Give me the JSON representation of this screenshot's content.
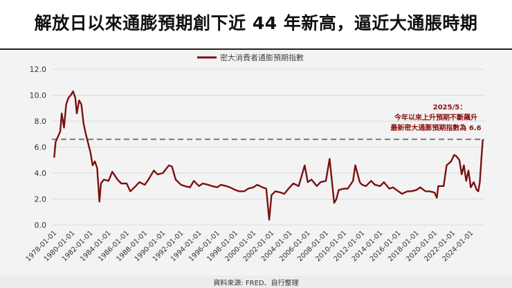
{
  "title": "解放日以來通膨預期創下近 44 年新高，逼近大通脹時期",
  "source": "資料來源: FRED、自行整理",
  "annotation": {
    "line1": "2025/5：",
    "line2": "今年以來上升預期不斷飆升",
    "line3": "最新密大通膨預期指數為 6.6"
  },
  "colors": {
    "series": "#7a1010",
    "annotation": "#8b1010",
    "reference": "#777777",
    "grid": "#d8d8d8"
  },
  "chart_data": {
    "type": "line",
    "title": "解放日以來通膨預期創下近 44 年新高，逼近大通脹時期",
    "legend": {
      "position": "top-center"
    },
    "series": [
      {
        "name": "密大消費者通膨預期指數",
        "points": [
          [
            "1978-01-01",
            5.2
          ],
          [
            "1978-03-01",
            6.4
          ],
          [
            "1978-06-01",
            6.8
          ],
          [
            "1978-09-01",
            7.2
          ],
          [
            "1978-11-01",
            8.6
          ],
          [
            "1979-02-01",
            7.5
          ],
          [
            "1979-05-01",
            9.3
          ],
          [
            "1979-08-01",
            9.8
          ],
          [
            "1979-11-01",
            10.0
          ],
          [
            "1980-02-01",
            10.3
          ],
          [
            "1980-05-01",
            9.8
          ],
          [
            "1980-07-01",
            8.6
          ],
          [
            "1980-10-01",
            9.6
          ],
          [
            "1981-01-01",
            9.3
          ],
          [
            "1981-04-01",
            7.8
          ],
          [
            "1981-07-01",
            7.0
          ],
          [
            "1981-10-01",
            6.3
          ],
          [
            "1982-01-01",
            5.6
          ],
          [
            "1982-04-01",
            4.6
          ],
          [
            "1982-07-01",
            4.9
          ],
          [
            "1982-10-01",
            4.4
          ],
          [
            "1983-01-01",
            1.8
          ],
          [
            "1983-03-01",
            3.2
          ],
          [
            "1983-07-01",
            3.5
          ],
          [
            "1984-01-01",
            3.4
          ],
          [
            "1984-06-01",
            4.1
          ],
          [
            "1985-01-01",
            3.5
          ],
          [
            "1985-06-01",
            3.2
          ],
          [
            "1986-01-01",
            3.2
          ],
          [
            "1986-06-01",
            2.6
          ],
          [
            "1987-01-01",
            3.0
          ],
          [
            "1987-06-01",
            3.3
          ],
          [
            "1988-01-01",
            3.1
          ],
          [
            "1988-06-01",
            3.5
          ],
          [
            "1989-01-01",
            4.2
          ],
          [
            "1989-06-01",
            3.9
          ],
          [
            "1990-01-01",
            4.0
          ],
          [
            "1990-09-01",
            4.6
          ],
          [
            "1991-01-01",
            4.5
          ],
          [
            "1991-06-01",
            3.5
          ],
          [
            "1992-01-01",
            3.1
          ],
          [
            "1992-06-01",
            3.0
          ],
          [
            "1993-01-01",
            2.9
          ],
          [
            "1993-06-01",
            3.4
          ],
          [
            "1994-01-01",
            3.0
          ],
          [
            "1994-06-01",
            3.2
          ],
          [
            "1995-01-01",
            3.1
          ],
          [
            "1995-06-01",
            3.0
          ],
          [
            "1996-01-01",
            2.9
          ],
          [
            "1996-06-01",
            3.1
          ],
          [
            "1997-01-01",
            3.0
          ],
          [
            "1997-06-01",
            2.9
          ],
          [
            "1998-01-01",
            2.7
          ],
          [
            "1998-06-01",
            2.6
          ],
          [
            "1999-01-01",
            2.6
          ],
          [
            "1999-06-01",
            2.8
          ],
          [
            "2000-01-01",
            2.9
          ],
          [
            "2000-06-01",
            3.1
          ],
          [
            "2001-01-01",
            2.9
          ],
          [
            "2001-06-01",
            2.8
          ],
          [
            "2001-10-01",
            0.4
          ],
          [
            "2002-01-01",
            2.3
          ],
          [
            "2002-06-01",
            2.6
          ],
          [
            "2003-01-01",
            2.5
          ],
          [
            "2003-06-01",
            2.4
          ],
          [
            "2004-01-01",
            2.9
          ],
          [
            "2004-06-01",
            3.2
          ],
          [
            "2005-01-01",
            3.0
          ],
          [
            "2005-09-01",
            4.6
          ],
          [
            "2006-01-01",
            3.3
          ],
          [
            "2006-06-01",
            3.5
          ],
          [
            "2007-01-01",
            3.0
          ],
          [
            "2007-06-01",
            3.3
          ],
          [
            "2008-01-01",
            3.4
          ],
          [
            "2008-06-01",
            5.1
          ],
          [
            "2008-12-01",
            1.7
          ],
          [
            "2009-03-01",
            2.0
          ],
          [
            "2009-06-01",
            2.7
          ],
          [
            "2010-01-01",
            2.8
          ],
          [
            "2010-06-01",
            2.8
          ],
          [
            "2011-01-01",
            3.4
          ],
          [
            "2011-04-01",
            4.6
          ],
          [
            "2011-10-01",
            3.3
          ],
          [
            "2012-01-01",
            3.1
          ],
          [
            "2012-06-01",
            3.0
          ],
          [
            "2013-01-01",
            3.4
          ],
          [
            "2013-06-01",
            3.1
          ],
          [
            "2014-01-01",
            3.0
          ],
          [
            "2014-06-01",
            3.3
          ],
          [
            "2015-01-01",
            2.8
          ],
          [
            "2015-06-01",
            2.9
          ],
          [
            "2016-01-01",
            2.6
          ],
          [
            "2016-06-01",
            2.4
          ],
          [
            "2017-01-01",
            2.6
          ],
          [
            "2017-06-01",
            2.6
          ],
          [
            "2018-01-01",
            2.7
          ],
          [
            "2018-06-01",
            2.9
          ],
          [
            "2019-01-01",
            2.6
          ],
          [
            "2019-06-01",
            2.6
          ],
          [
            "2020-01-01",
            2.5
          ],
          [
            "2020-04-01",
            2.1
          ],
          [
            "2020-06-01",
            3.0
          ],
          [
            "2021-01-01",
            3.0
          ],
          [
            "2021-05-01",
            4.6
          ],
          [
            "2021-11-01",
            4.9
          ],
          [
            "2022-03-01",
            5.4
          ],
          [
            "2022-06-01",
            5.3
          ],
          [
            "2022-10-01",
            5.0
          ],
          [
            "2023-01-01",
            3.9
          ],
          [
            "2023-04-01",
            4.6
          ],
          [
            "2023-07-01",
            3.4
          ],
          [
            "2023-10-01",
            4.2
          ],
          [
            "2024-01-01",
            2.9
          ],
          [
            "2024-05-01",
            3.3
          ],
          [
            "2024-09-01",
            2.7
          ],
          [
            "2024-11-01",
            2.6
          ],
          [
            "2025-01-01",
            3.3
          ],
          [
            "2025-03-01",
            5.0
          ],
          [
            "2025-05-01",
            6.6
          ]
        ]
      }
    ],
    "reference_line": {
      "y": 6.6
    },
    "ylim": [
      0,
      12
    ],
    "yticks": [
      "0.0",
      "2.0",
      "4.0",
      "6.0",
      "8.0",
      "10.0",
      "12.0"
    ],
    "xlim": [
      "1977-10-01",
      "2025-07-01"
    ],
    "xticks": [
      "1978-01-01",
      "1980-01-01",
      "1982-01-01",
      "1984-01-01",
      "1986-01-01",
      "1988-01-01",
      "1990-01-01",
      "1992-01-01",
      "1994-01-01",
      "1996-01-01",
      "1998-01-01",
      "2000-01-01",
      "2002-01-01",
      "2004-01-01",
      "2006-01-01",
      "2008-01-01",
      "2010-01-01",
      "2012-01-01",
      "2014-01-01",
      "2016-01-01",
      "2018-01-01",
      "2020-01-01",
      "2022-01-01",
      "2024-01-01"
    ],
    "grid": true
  }
}
